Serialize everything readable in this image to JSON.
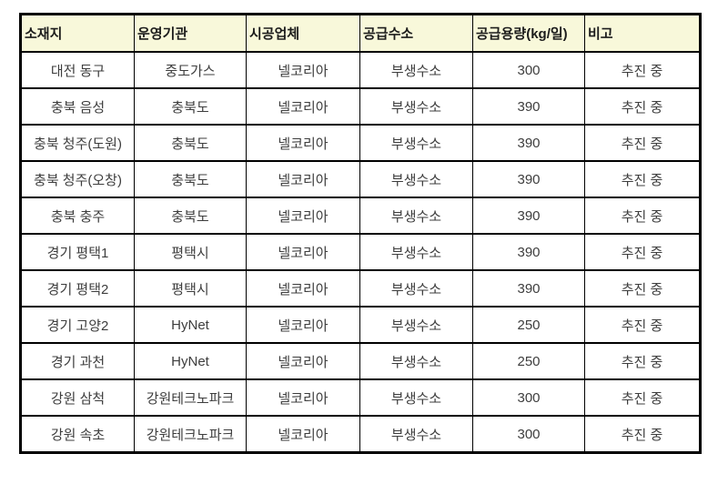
{
  "table": {
    "name": "hydrogen-station-status-table",
    "columns": [
      {
        "key": "location",
        "label": "소재지"
      },
      {
        "key": "operator",
        "label": "운영기관"
      },
      {
        "key": "constructor",
        "label": "시공업체"
      },
      {
        "key": "hydrogen",
        "label": "공급수소"
      },
      {
        "key": "capacity",
        "label": "공급용량(kg/일)"
      },
      {
        "key": "remarks",
        "label": "비고"
      }
    ],
    "rows": [
      [
        "대전 동구",
        "중도가스",
        "넬코리아",
        "부생수소",
        "300",
        "추진 중"
      ],
      [
        "충북 음성",
        "충북도",
        "넬코리아",
        "부생수소",
        "390",
        "추진 중"
      ],
      [
        "충북 청주(도원)",
        "충북도",
        "넬코리아",
        "부생수소",
        "390",
        "추진 중"
      ],
      [
        "충북 청주(오창)",
        "충북도",
        "넬코리아",
        "부생수소",
        "390",
        "추진 중"
      ],
      [
        "충북 충주",
        "충북도",
        "넬코리아",
        "부생수소",
        "390",
        "추진 중"
      ],
      [
        "경기 평택1",
        "평택시",
        "넬코리아",
        "부생수소",
        "390",
        "추진 중"
      ],
      [
        "경기 평택2",
        "평택시",
        "넬코리아",
        "부생수소",
        "390",
        "추진 중"
      ],
      [
        "경기 고양2",
        "HyNet",
        "넬코리아",
        "부생수소",
        "250",
        "추진 중"
      ],
      [
        "경기 과천",
        "HyNet",
        "넬코리아",
        "부생수소",
        "250",
        "추진 중"
      ],
      [
        "강원 삼척",
        "강원테크노파크",
        "넬코리아",
        "부생수소",
        "300",
        "추진 중"
      ],
      [
        "강원 속초",
        "강원테크노파크",
        "넬코리아",
        "부생수소",
        "300",
        "추진 중"
      ]
    ],
    "colors": {
      "header_bg": "#f8f8da",
      "header_text": "#1c1c1c",
      "cell_text": "#3d3d3d",
      "border": "#000000"
    }
  }
}
